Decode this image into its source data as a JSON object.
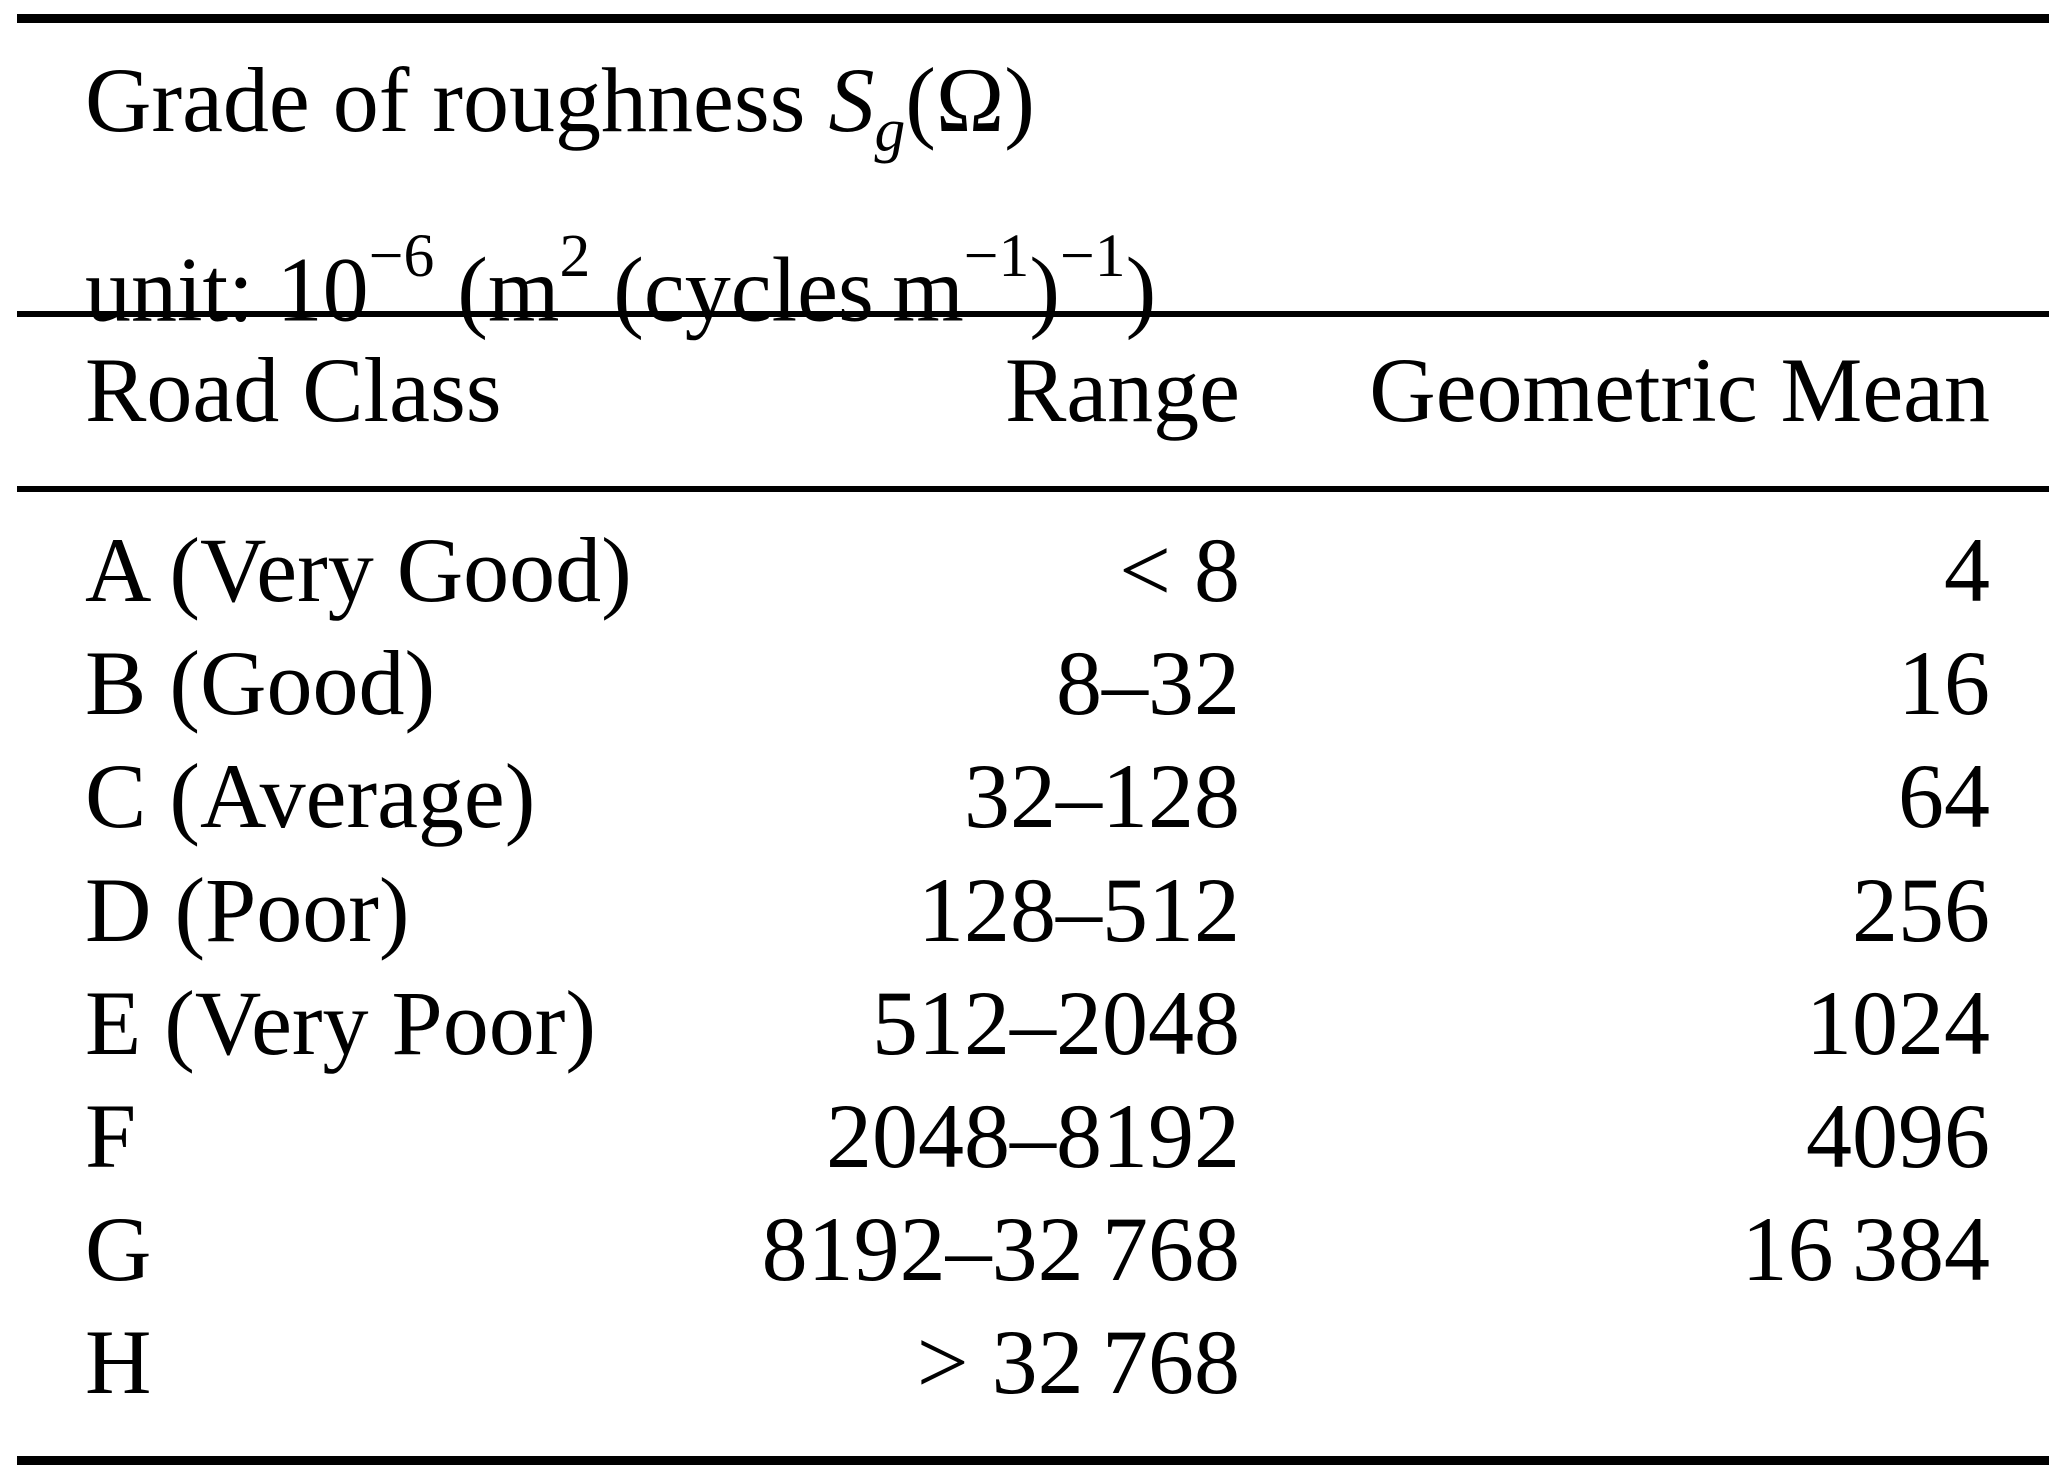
{
  "page": {
    "background_color": "#ffffff",
    "text_color": "#000000",
    "rule_color": "#000000"
  },
  "table": {
    "title": {
      "prefix": "Grade of roughness ",
      "symbol": "S",
      "symbol_subscript": "g",
      "symbol_suffix": "(Ω)"
    },
    "unit_line": {
      "p0": "unit: 10",
      "p1": "−6",
      "p2": " (m",
      "p3": "2",
      "p4": " (cycles m",
      "p5": "−1",
      "p6": ")",
      "p7": "−1",
      "p8": ")"
    },
    "columns": [
      "Road Class",
      "Range",
      "Geometric Mean"
    ],
    "rows": [
      {
        "road_class": "A (Very Good)",
        "range": "< 8",
        "geometric_mean": "4"
      },
      {
        "road_class": "B (Good)",
        "range": "8–32",
        "geometric_mean": "16"
      },
      {
        "road_class": "C (Average)",
        "range": "32–128",
        "geometric_mean": "64"
      },
      {
        "road_class": "D (Poor)",
        "range": "128–512",
        "geometric_mean": "256"
      },
      {
        "road_class": "E (Very Poor)",
        "range": "512–2048",
        "geometric_mean": "1024"
      },
      {
        "road_class": "F",
        "range": "2048–8192",
        "geometric_mean": "4096"
      },
      {
        "road_class": "G",
        "range": "8192–32 768",
        "geometric_mean": "16 384"
      },
      {
        "road_class": "H",
        "range": "> 32 768",
        "geometric_mean": ""
      }
    ]
  }
}
